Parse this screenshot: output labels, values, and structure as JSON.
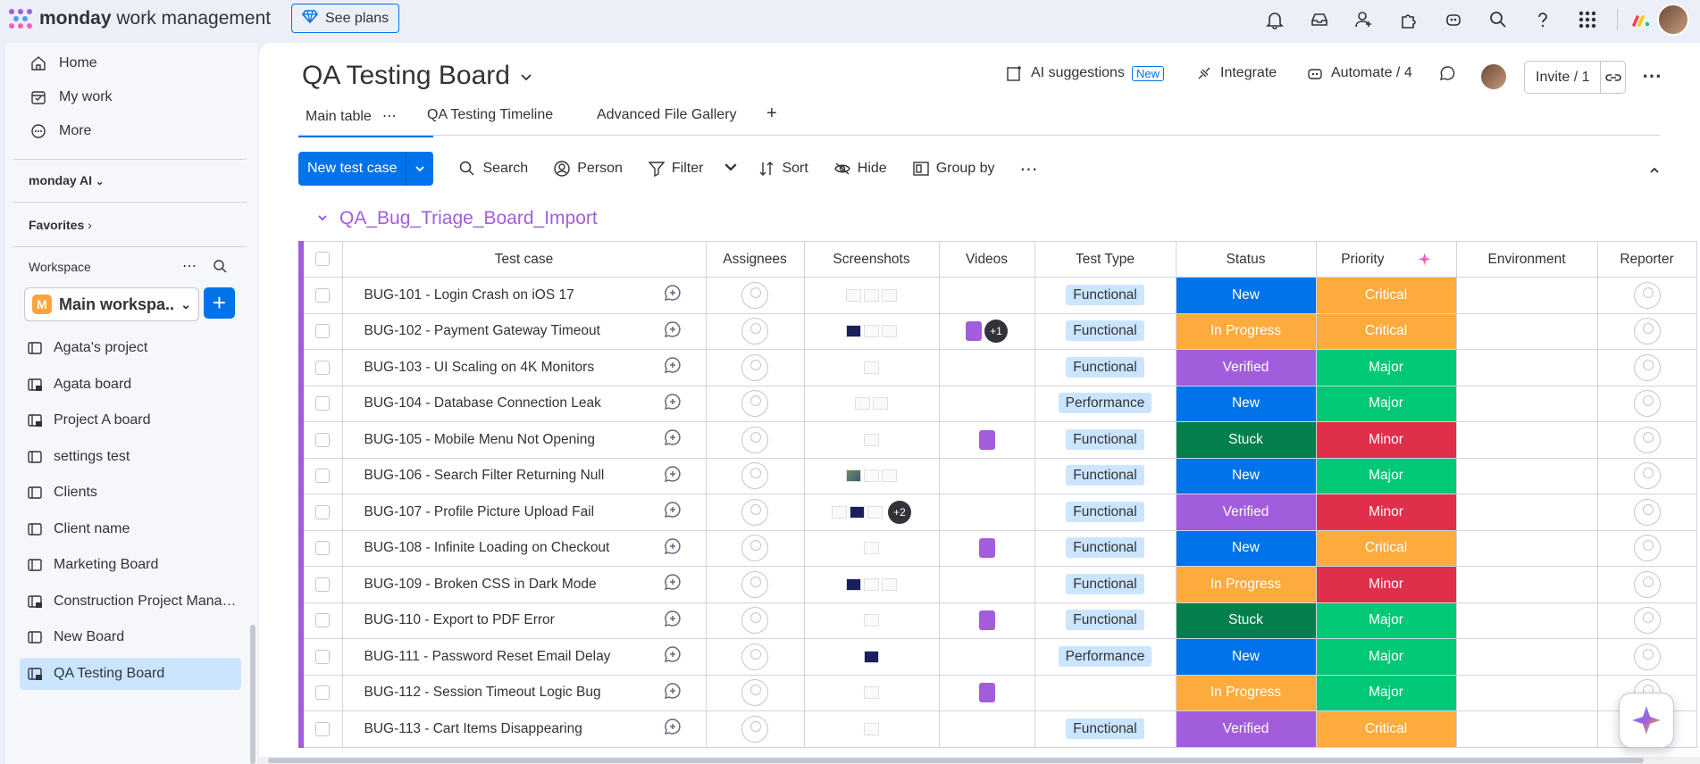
{
  "topbar": {
    "app_name_bold": "monday",
    "app_name_rest": " work management",
    "see_plans": "See plans",
    "icons": [
      "bell-icon",
      "inbox-icon",
      "invite-members-icon",
      "apps-icon",
      "ai-bot-icon",
      "search-icon",
      "help-icon",
      "app-launcher-icon"
    ]
  },
  "sidebar": {
    "nav": [
      {
        "label": "Home",
        "icon": "home-icon"
      },
      {
        "label": "My work",
        "icon": "calendar-check-icon"
      },
      {
        "label": "More",
        "icon": "more-icon"
      }
    ],
    "monday_ai": "monday AI",
    "favorites": "Favorites",
    "workspace_label": "Workspace",
    "workspace_badge": "M",
    "workspace_name": "Main workspa...",
    "boards": [
      {
        "label": "Agata's project",
        "icon": "board-icon"
      },
      {
        "label": "Agata board",
        "icon": "private-board-icon"
      },
      {
        "label": "Project A board",
        "icon": "private-board-icon"
      },
      {
        "label": "settings test",
        "icon": "board-icon"
      },
      {
        "label": "Clients",
        "icon": "board-icon"
      },
      {
        "label": "Client name",
        "icon": "board-icon"
      },
      {
        "label": "Marketing Board",
        "icon": "board-icon"
      },
      {
        "label": "Construction Project Manag...",
        "icon": "private-board-icon"
      },
      {
        "label": "New Board",
        "icon": "board-icon"
      },
      {
        "label": "QA Testing Board",
        "icon": "private-board-icon",
        "active": true
      }
    ]
  },
  "board": {
    "title": "QA Testing Board",
    "ai_suggestions": "AI suggestions",
    "new_badge": "New",
    "integrate": "Integrate",
    "automate": "Automate / 4",
    "invite": "Invite / 1",
    "tabs": [
      "Main table",
      "QA Testing Timeline",
      "Advanced File Gallery"
    ],
    "add_tab": "+"
  },
  "toolbar": {
    "new_item": "New test case",
    "search": "Search",
    "person": "Person",
    "filter": "Filter",
    "sort": "Sort",
    "hide": "Hide",
    "group_by": "Group by"
  },
  "group": {
    "title": "QA_Bug_Triage_Board_Import",
    "color": "#a25ddc",
    "columns": [
      "Test case",
      "Assignees",
      "Screenshots",
      "Videos",
      "Test Type",
      "Status",
      "Priority",
      "Environment",
      "Reporter"
    ],
    "rows": [
      {
        "name": "BUG-101 - Login Crash on iOS 17",
        "shots": "lll",
        "extra": "",
        "video": false,
        "vextra": "",
        "type": "Functional",
        "status": "New",
        "priority": "Critical"
      },
      {
        "name": "BUG-102 - Payment Gateway Timeout",
        "shots": "dll",
        "extra": "",
        "video": true,
        "vextra": "+1",
        "type": "Functional",
        "status": "In Progress",
        "priority": "Critical"
      },
      {
        "name": "BUG-103 - UI Scaling on 4K Monitors",
        "shots": "l",
        "extra": "",
        "video": false,
        "vextra": "",
        "type": "Functional",
        "status": "Verified",
        "priority": "Major"
      },
      {
        "name": "BUG-104 - Database Connection Leak",
        "shots": "ll",
        "extra": "",
        "video": false,
        "vextra": "",
        "type": "Performance",
        "status": "New",
        "priority": "Major"
      },
      {
        "name": "BUG-105 - Mobile Menu Not Opening",
        "shots": "l",
        "extra": "",
        "video": true,
        "vextra": "",
        "type": "Functional",
        "status": "Stuck",
        "priority": "Minor"
      },
      {
        "name": "BUG-106 - Search Filter Returning Null",
        "shots": "ill",
        "extra": "",
        "video": false,
        "vextra": "",
        "type": "Functional",
        "status": "New",
        "priority": "Major"
      },
      {
        "name": "BUG-107 - Profile Picture Upload Fail",
        "shots": "ldl",
        "extra": "+2",
        "video": false,
        "vextra": "",
        "type": "Functional",
        "status": "Verified",
        "priority": "Minor"
      },
      {
        "name": "BUG-108 - Infinite Loading on Checkout",
        "shots": "l",
        "extra": "",
        "video": true,
        "vextra": "",
        "type": "Functional",
        "status": "New",
        "priority": "Critical"
      },
      {
        "name": "BUG-109 - Broken CSS in Dark Mode",
        "shots": "dll",
        "extra": "",
        "video": false,
        "vextra": "",
        "type": "Functional",
        "status": "In Progress",
        "priority": "Minor"
      },
      {
        "name": "BUG-110 - Export to PDF Error",
        "shots": "l",
        "extra": "",
        "video": true,
        "vextra": "",
        "type": "Functional",
        "status": "Stuck",
        "priority": "Major"
      },
      {
        "name": "BUG-111 - Password Reset Email Delay",
        "shots": "d",
        "extra": "",
        "video": false,
        "vextra": "",
        "type": "Performance",
        "status": "New",
        "priority": "Major"
      },
      {
        "name": "BUG-112 - Session Timeout Logic Bug",
        "shots": "l",
        "extra": "",
        "video": true,
        "vextra": "",
        "type": "",
        "status": "In Progress",
        "priority": "Major"
      },
      {
        "name": "BUG-113 - Cart Items Disappearing",
        "shots": "l",
        "extra": "",
        "video": false,
        "vextra": "",
        "type": "Functional",
        "status": "Verified",
        "priority": "Critical"
      }
    ]
  }
}
